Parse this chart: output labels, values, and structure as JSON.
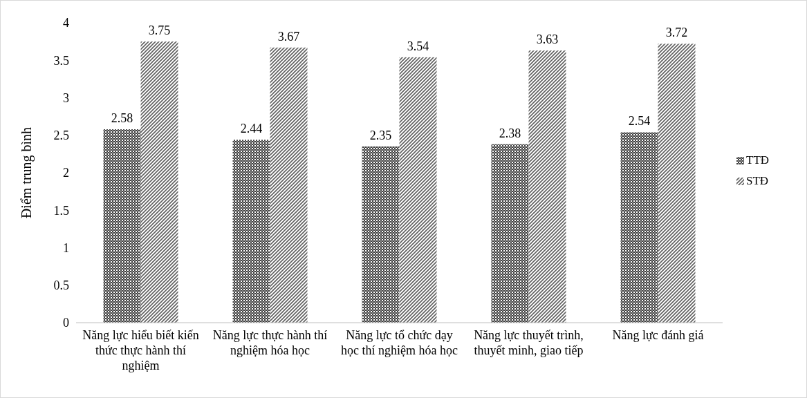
{
  "chart_data": {
    "type": "bar",
    "ylabel": "Điểm trung bình",
    "categories": [
      "Năng lực hiểu biết kiến thức thực hành thí nghiệm",
      "Năng lực thực hành thí nghiệm hóa học",
      "Năng lực tổ chức dạy học thí nghiệm hóa học",
      "Năng lực thuyết trình, thuyết minh, giao tiếp",
      "Năng lực đánh giá"
    ],
    "series": [
      {
        "name": "TTĐ",
        "color": "#404040",
        "values": [
          2.58,
          2.44,
          2.35,
          2.38,
          2.54
        ]
      },
      {
        "name": "STĐ",
        "color": "#606060",
        "values": [
          3.75,
          3.67,
          3.54,
          3.63,
          3.72
        ]
      }
    ],
    "ylim": [
      0,
      4
    ],
    "yticks": [
      0,
      0.5,
      1,
      1.5,
      2,
      2.5,
      3,
      3.5,
      4
    ],
    "grid": false,
    "legend": "right",
    "data_labels": true
  }
}
